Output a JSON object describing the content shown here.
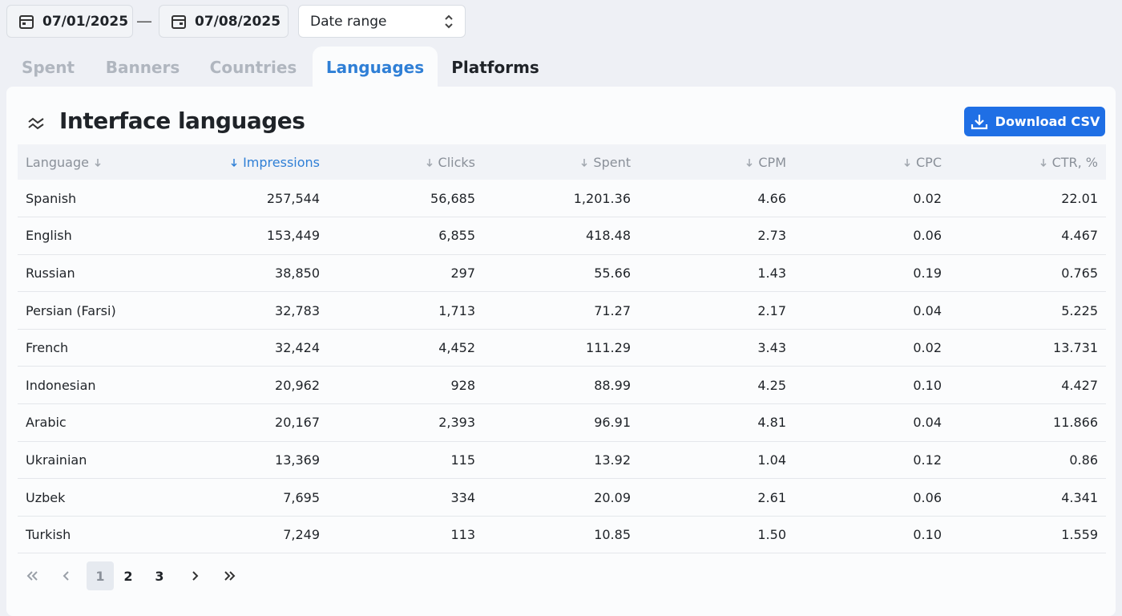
{
  "date_from": "07/01/2025",
  "separator": "—",
  "date_to": "07/08/2025",
  "range_select": "Date range",
  "tabs": [
    "Spent",
    "Banners",
    "Countries",
    "Languages",
    "Platforms"
  ],
  "card": {
    "title": "Interface languages",
    "download": "Download CSV"
  },
  "table": {
    "columns": [
      "Language",
      "Impressions",
      "Clicks",
      "Spent",
      "CPM",
      "CPC",
      "CTR, %"
    ],
    "rows": [
      [
        "Spanish",
        "257,544",
        "56,685",
        "1,201.36",
        "4.66",
        "0.02",
        "22.01"
      ],
      [
        "English",
        "153,449",
        "6,855",
        "418.48",
        "2.73",
        "0.06",
        "4.467"
      ],
      [
        "Russian",
        "38,850",
        "297",
        "55.66",
        "1.43",
        "0.19",
        "0.765"
      ],
      [
        "Persian (Farsi)",
        "32,783",
        "1,713",
        "71.27",
        "2.17",
        "0.04",
        "5.225"
      ],
      [
        "French",
        "32,424",
        "4,452",
        "111.29",
        "3.43",
        "0.02",
        "13.731"
      ],
      [
        "Indonesian",
        "20,962",
        "928",
        "88.99",
        "4.25",
        "0.10",
        "4.427"
      ],
      [
        "Arabic",
        "20,167",
        "2,393",
        "96.91",
        "4.81",
        "0.04",
        "11.866"
      ],
      [
        "Ukrainian",
        "13,369",
        "115",
        "13.92",
        "1.04",
        "0.12",
        "0.86"
      ],
      [
        "Uzbek",
        "7,695",
        "334",
        "20.09",
        "2.61",
        "0.06",
        "4.341"
      ],
      [
        "Turkish",
        "7,249",
        "113",
        "10.85",
        "1.50",
        "0.10",
        "1.559"
      ]
    ]
  },
  "pagination": {
    "pages": [
      "1",
      "2",
      "3"
    ]
  }
}
